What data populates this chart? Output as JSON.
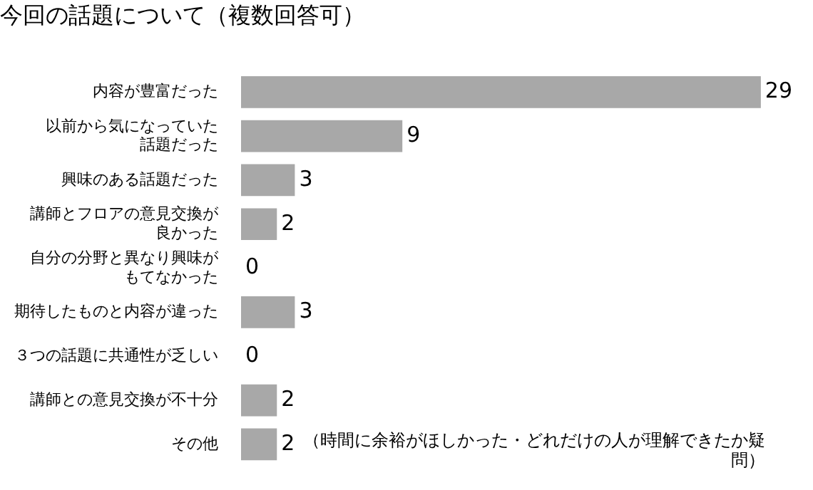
{
  "chart_data": {
    "type": "bar",
    "orientation": "horizontal",
    "title": "今回の話題について（複数回答可）",
    "categories": [
      "内容が豊富だった",
      "以前から気になっていた話題だった",
      "興味のある話題だった",
      "講師とフロアの意見交換が良かった",
      "自分の分野と異なり興味がもてなかった",
      "期待したものと内容が違った",
      "３つの話題に共通性が乏しい",
      "講師との意見交換が不十分",
      "その他"
    ],
    "values": [
      29,
      9,
      3,
      2,
      0,
      3,
      0,
      2,
      2
    ],
    "color": "#a8a8a8",
    "data_labels": true,
    "grid": false,
    "legend": false,
    "annotations": [
      {
        "text": "（時間に余裕がほしかった・どれだけの人が理解できたか疑問）",
        "x": 2,
        "y": "その他"
      }
    ]
  }
}
